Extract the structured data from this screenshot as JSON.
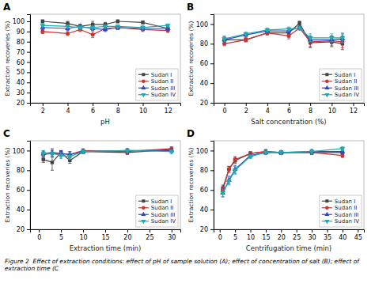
{
  "chart_data": [
    {
      "type": "line",
      "title": "A",
      "x_label": "pH",
      "y_label": "Extraction recoveries (%)",
      "x": [
        2,
        4,
        5,
        6,
        7,
        8,
        10,
        12
      ],
      "xlim": [
        1,
        13
      ],
      "ylim": [
        20,
        107
      ],
      "xticks": [
        2,
        4,
        6,
        8,
        10,
        12
      ],
      "yticks": [
        20,
        30,
        40,
        50,
        60,
        70,
        80,
        90,
        100
      ],
      "grid": false,
      "legend": "lower right",
      "series": [
        {
          "name": "Sudan I",
          "color": "#444444",
          "marker": "square",
          "values": [
            100,
            98,
            95,
            97,
            97,
            100,
            99,
            93
          ],
          "errors": [
            1.5,
            2.0,
            2.0,
            3.0,
            2.0,
            1.5,
            1.5,
            2.0
          ]
        },
        {
          "name": "Sudan II",
          "color": "#cc3333",
          "marker": "circle",
          "values": [
            90,
            88,
            92,
            87,
            93,
            94,
            92,
            91
          ],
          "errors": [
            2.0,
            2.0,
            2.0,
            3.0,
            2.0,
            2.0,
            2.0,
            2.0
          ]
        },
        {
          "name": "Sudan III",
          "color": "#3344cc",
          "marker": "triangle-up",
          "values": [
            94,
            93,
            95,
            93,
            92,
            94,
            93,
            93
          ],
          "errors": [
            2.0,
            2.0,
            2.0,
            2.0,
            2.0,
            2.0,
            2.0,
            2.0
          ]
        },
        {
          "name": "Sudan IV",
          "color": "#22aaaa",
          "marker": "triangle-down",
          "values": [
            96,
            95,
            94,
            94,
            95,
            95,
            94,
            96
          ],
          "errors": [
            1.5,
            1.5,
            1.5,
            1.5,
            1.5,
            1.5,
            1.5,
            1.5
          ]
        }
      ]
    },
    {
      "type": "line",
      "title": "B",
      "x_label": "Salt concentration (%)",
      "y_label": "Extraction recoveries (%)",
      "x": [
        0,
        2,
        4,
        6,
        7,
        8,
        10,
        11
      ],
      "xlim": [
        -1,
        13
      ],
      "ylim": [
        20,
        110
      ],
      "xticks": [
        0,
        2,
        4,
        6,
        8,
        10,
        12
      ],
      "yticks": [
        20,
        40,
        60,
        80,
        100
      ],
      "grid": false,
      "legend": "lower right",
      "series": [
        {
          "name": "Sudan I",
          "color": "#444444",
          "marker": "square",
          "values": [
            84,
            84,
            91,
            91,
            101,
            81,
            82,
            80
          ],
          "errors": [
            2.0,
            2.0,
            2.0,
            2.0,
            2.0,
            5.0,
            5.0,
            6.0
          ]
        },
        {
          "name": "Sudan II",
          "color": "#cc3333",
          "marker": "circle",
          "values": [
            80,
            84,
            91,
            88,
            96,
            82,
            83,
            82
          ],
          "errors": [
            2.0,
            2.0,
            2.0,
            3.0,
            2.0,
            5.0,
            5.0,
            6.0
          ]
        },
        {
          "name": "Sudan III",
          "color": "#3344cc",
          "marker": "triangle-up",
          "values": [
            84,
            89,
            93,
            93,
            97,
            84,
            84,
            85
          ],
          "errors": [
            3.0,
            2.0,
            2.0,
            2.0,
            2.0,
            4.0,
            4.0,
            5.0
          ]
        },
        {
          "name": "Sudan IV",
          "color": "#22aaaa",
          "marker": "triangle-down",
          "values": [
            85,
            90,
            94,
            95,
            96,
            86,
            86,
            86
          ],
          "errors": [
            3.0,
            2.0,
            2.0,
            2.0,
            2.0,
            4.0,
            4.0,
            5.0
          ]
        }
      ]
    },
    {
      "type": "line",
      "title": "C",
      "x_label": "Extraction time (min)",
      "y_label": "Extraction recoveries (%)",
      "x": [
        1,
        3,
        5,
        7,
        10,
        20,
        30
      ],
      "xlim": [
        -2,
        32
      ],
      "ylim": [
        20,
        110
      ],
      "xticks": [
        0,
        5,
        10,
        15,
        20,
        25,
        30
      ],
      "yticks": [
        20,
        40,
        60,
        80,
        100
      ],
      "grid": false,
      "legend": "lower right",
      "series": [
        {
          "name": "Sudan I",
          "color": "#444444",
          "marker": "square",
          "values": [
            91,
            88,
            98,
            90,
            99,
            98,
            101
          ],
          "errors": [
            3.0,
            8.0,
            2.0,
            3.0,
            2.0,
            2.0,
            2.0
          ]
        },
        {
          "name": "Sudan II",
          "color": "#cc3333",
          "marker": "circle",
          "values": [
            96,
            97,
            97,
            96,
            100,
            99,
            102
          ],
          "errors": [
            3.0,
            3.0,
            3.0,
            3.0,
            2.0,
            2.0,
            2.0
          ]
        },
        {
          "name": "Sudan III",
          "color": "#3344cc",
          "marker": "triangle-up",
          "values": [
            97,
            98,
            97,
            96,
            99,
            100,
            100
          ],
          "errors": [
            3.0,
            4.0,
            3.0,
            3.0,
            2.0,
            2.0,
            2.0
          ]
        },
        {
          "name": "Sudan IV",
          "color": "#22aaaa",
          "marker": "triangle-down",
          "values": [
            97,
            97,
            95,
            94,
            99,
            100,
            99
          ],
          "errors": [
            3.0,
            4.0,
            3.0,
            3.0,
            2.0,
            2.0,
            2.0
          ]
        }
      ]
    },
    {
      "type": "line",
      "title": "D",
      "x_label": "Centrifugation time (min)",
      "y_label": "Extraction recoveries (%)",
      "x": [
        1,
        3,
        5,
        10,
        15,
        20,
        30,
        40
      ],
      "xlim": [
        -2,
        47
      ],
      "ylim": [
        20,
        110
      ],
      "xticks": [
        0,
        5,
        10,
        15,
        20,
        25,
        30,
        35,
        40,
        45
      ],
      "yticks": [
        20,
        40,
        60,
        80,
        100
      ],
      "grid": false,
      "legend": "lower right",
      "series": [
        {
          "name": "Sudan I",
          "color": "#444444",
          "marker": "square",
          "values": [
            62,
            81,
            90,
            97,
            99,
            98,
            98,
            98
          ],
          "errors": [
            3.0,
            3.0,
            3.0,
            2.0,
            2.0,
            2.0,
            2.0,
            2.0
          ]
        },
        {
          "name": "Sudan II",
          "color": "#cc3333",
          "marker": "circle",
          "values": [
            60,
            81,
            91,
            97,
            99,
            98,
            98,
            95
          ],
          "errors": [
            3.0,
            3.0,
            3.0,
            2.0,
            2.0,
            2.0,
            2.0,
            2.0
          ]
        },
        {
          "name": "Sudan III",
          "color": "#3344cc",
          "marker": "triangle-up",
          "values": [
            57,
            70,
            81,
            95,
            98,
            98,
            99,
            99
          ],
          "errors": [
            4.0,
            4.0,
            4.0,
            2.0,
            2.0,
            2.0,
            2.0,
            2.0
          ]
        },
        {
          "name": "Sudan IV",
          "color": "#22aaaa",
          "marker": "triangle-down",
          "values": [
            57,
            69,
            80,
            94,
            98,
            98,
            99,
            102
          ],
          "errors": [
            4.0,
            4.0,
            4.0,
            2.0,
            2.0,
            2.0,
            2.0,
            2.0
          ]
        }
      ]
    }
  ],
  "caption": "Figure 2  Effect of extraction conditions: effect of pH of sample solution (A); effect of concentration of salt (B); effect of extraction time (C"
}
